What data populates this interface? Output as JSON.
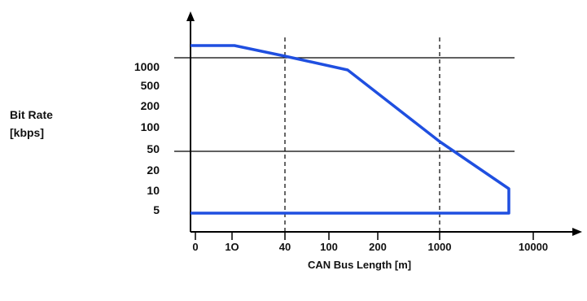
{
  "chart_data": {
    "type": "line",
    "title": "",
    "xlabel": "CAN Bus Length [m]",
    "ylabel_lines": [
      "Bit Rate",
      "[kbps]"
    ],
    "x_tick_labels": [
      "0",
      "1O",
      "40",
      "100",
      "200",
      "1000",
      "10000"
    ],
    "y_tick_labels": [
      "1000",
      "500",
      "200",
      "100",
      "50",
      "20",
      "10",
      "5"
    ],
    "horizontal_reference_lines_at": [
      "1000",
      "50"
    ],
    "vertical_dashed_lines_at": [
      "40",
      "1000"
    ],
    "series": [
      {
        "type": "outline",
        "color": "#1f4fe0",
        "points": [
          {
            "x": "0",
            "y": "above 1000"
          },
          {
            "x": "1O",
            "y": "above 1000"
          },
          {
            "x": "40",
            "y": "1000"
          },
          {
            "x": "~130",
            "y": "~700"
          },
          {
            "x": "1000",
            "y": "~60"
          },
          {
            "x": "~5000",
            "y": "~10"
          },
          {
            "x": "~5000",
            "y": "5"
          },
          {
            "x": "0",
            "y": "5"
          }
        ]
      }
    ],
    "grid": false,
    "colors": {
      "curve": "#1f4fe0",
      "axis": "#000000",
      "reference_lines": "#000000"
    }
  }
}
